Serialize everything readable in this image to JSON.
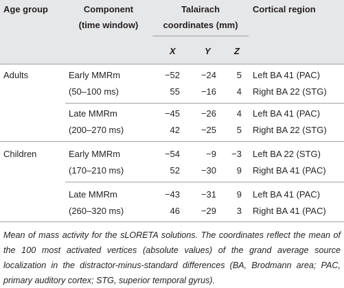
{
  "header": {
    "age_group": "Age group",
    "component": [
      "Component",
      "(time window)"
    ],
    "coordinates": [
      "Talairach",
      "coordinates (mm)"
    ],
    "axes": [
      "X",
      "Y",
      "Z"
    ],
    "region": "Cortical region"
  },
  "groups": [
    {
      "age": "Adults",
      "components": [
        {
          "name": "Early MMRm",
          "window": "(50–100 ms)",
          "rows": [
            [
              "−52",
              "−24",
              "5",
              "Left BA 41 (PAC)"
            ],
            [
              "55",
              "−16",
              "4",
              "Right BA 22 (STG)"
            ]
          ]
        },
        {
          "name": "Late MMRm",
          "window": "(200–270 ms)",
          "rows": [
            [
              "−45",
              "−26",
              "4",
              "Left BA 41 (PAC)"
            ],
            [
              "42",
              "−25",
              "5",
              "Right BA 22 (STG)"
            ]
          ]
        }
      ]
    },
    {
      "age": "Children",
      "components": [
        {
          "name": "Early MMRm",
          "window": "(170–210 ms)",
          "rows": [
            [
              "−54",
              "−9",
              "−3",
              "Left BA 22 (STG)"
            ],
            [
              "52",
              "−30",
              "9",
              "Right BA 41 (PAC)"
            ]
          ]
        },
        {
          "name": "Late MMRm",
          "window": "(260–320 ms)",
          "rows": [
            [
              "−43",
              "−31",
              "9",
              "Left BA 41 (PAC)"
            ],
            [
              "46",
              "−29",
              "3",
              "Right BA 41 (PAC)"
            ]
          ]
        }
      ]
    }
  ],
  "caption": "Mean of mass activity for the sLORETA solutions. The coordinates reflect the mean of the 100 most activated vertices (absolute values) of the grand average source localization in the distractor-minus-standard differences (BA, Brodmann area; PAC, primary auditory cortex; STG, superior temporal gyrus)."
}
